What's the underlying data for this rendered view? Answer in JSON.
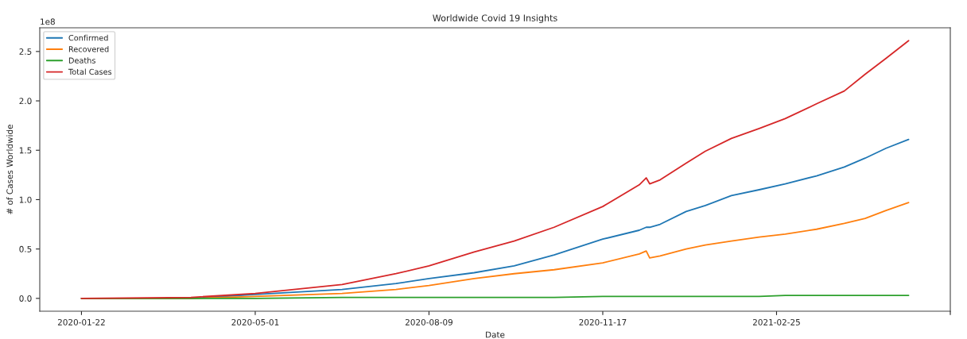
{
  "chart_data": {
    "type": "line",
    "title": "Worldwide Covid 19 Insights",
    "xlabel": "Date",
    "ylabel": "# of Cases Worldwide",
    "annotations": [
      "1e8"
    ],
    "x": [
      "2020-01-22",
      "2020-03-25",
      "2020-05-01",
      "2020-06-20",
      "2020-07-21",
      "2020-08-09",
      "2020-09-04",
      "2020-09-27",
      "2020-10-20",
      "2020-11-17",
      "2020-12-08",
      "2020-12-12",
      "2020-12-14",
      "2020-12-20",
      "2021-01-04",
      "2021-01-15",
      "2021-01-30",
      "2021-02-15",
      "2021-03-02",
      "2021-03-20",
      "2021-04-05",
      "2021-04-17",
      "2021-04-29",
      "2021-05-12"
    ],
    "series": [
      {
        "name": "Confirmed",
        "color": "#1f77b4",
        "values": [
          0,
          0,
          0.04,
          0.09,
          0.15,
          0.2,
          0.26,
          0.33,
          0.44,
          0.6,
          0.69,
          0.72,
          0.72,
          0.75,
          0.88,
          0.94,
          1.04,
          1.1,
          1.16,
          1.24,
          1.33,
          1.42,
          1.52,
          1.61
        ]
      },
      {
        "name": "Recovered",
        "color": "#ff7f0e",
        "values": [
          0,
          0,
          0.02,
          0.05,
          0.09,
          0.13,
          0.2,
          0.25,
          0.29,
          0.36,
          0.45,
          0.48,
          0.41,
          0.43,
          0.5,
          0.54,
          0.58,
          0.62,
          0.65,
          0.7,
          0.76,
          0.81,
          0.89,
          0.97
        ]
      },
      {
        "name": "Deaths",
        "color": "#2ca02c",
        "values": [
          0,
          0,
          0,
          0.01,
          0.01,
          0.01,
          0.01,
          0.01,
          0.01,
          0.02,
          0.02,
          0.02,
          0.02,
          0.02,
          0.02,
          0.02,
          0.02,
          0.02,
          0.03,
          0.03,
          0.03,
          0.03,
          0.03,
          0.03
        ]
      },
      {
        "name": "Total Cases",
        "color": "#d62728",
        "values": [
          0,
          0.01,
          0.05,
          0.14,
          0.25,
          0.33,
          0.47,
          0.58,
          0.72,
          0.93,
          1.15,
          1.22,
          1.16,
          1.2,
          1.37,
          1.49,
          1.62,
          1.72,
          1.82,
          1.97,
          2.1,
          2.27,
          2.43,
          2.61
        ]
      }
    ],
    "xlim": [
      "2019-12-29",
      "2021-06-05"
    ],
    "xticks": [
      {
        "value": "2020-01-22",
        "label": "2020-01-22"
      },
      {
        "value": "2020-05-01",
        "label": "2020-05-01"
      },
      {
        "value": "2020-08-09",
        "label": "2020-08-09"
      },
      {
        "value": "2020-11-17",
        "label": "2020-11-17"
      },
      {
        "value": "2021-02-25",
        "label": "2021-02-25"
      },
      {
        "value": "2021-06-05",
        "label": null
      }
    ],
    "ylim": [
      -0.13,
      2.74
    ],
    "yticks": [
      {
        "value": 0,
        "label": "0.0"
      },
      {
        "value": 0.5,
        "label": "0.5"
      },
      {
        "value": 1,
        "label": "1.0"
      },
      {
        "value": 1.5,
        "label": "1.5"
      },
      {
        "value": 2,
        "label": "2.0"
      },
      {
        "value": 2.5,
        "label": "2.5"
      }
    ],
    "grid": false,
    "legend": "top left",
    "marker": "none",
    "line_style": "solid"
  }
}
